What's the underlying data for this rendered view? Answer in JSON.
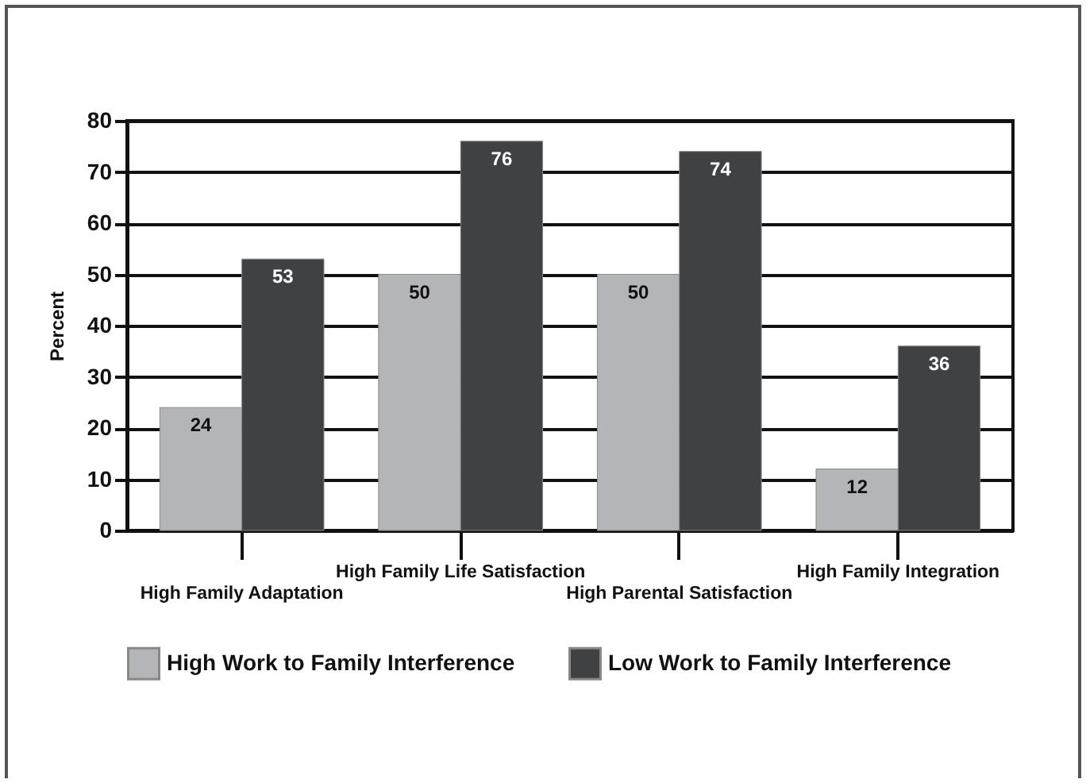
{
  "chart_data": {
    "type": "bar",
    "ylabel": "Percent",
    "categories": [
      "High Family Adaptation",
      "High Family Life Satisfaction",
      "High Parental Satisfaction",
      "High Family Integration"
    ],
    "series": [
      {
        "name": "High Work to Family Interference",
        "color": "#b4b5b8",
        "values": [
          24,
          50,
          50,
          12
        ]
      },
      {
        "name": "Low Work to Family Interference",
        "color": "#404143",
        "values": [
          53,
          76,
          74,
          36
        ]
      }
    ],
    "ylim": [
      0,
      80
    ],
    "yticks": [
      0,
      10,
      20,
      30,
      40,
      50,
      60,
      70,
      80
    ],
    "grid": "y",
    "legend": "bottom",
    "data_labels": true
  }
}
